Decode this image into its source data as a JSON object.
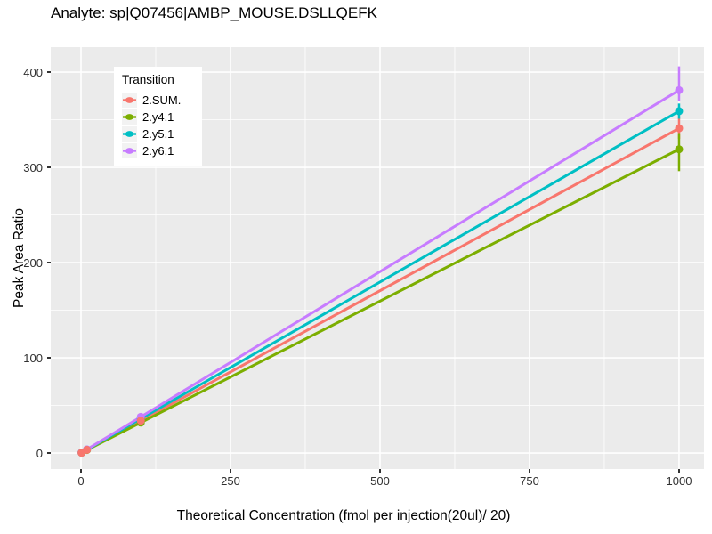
{
  "title": "Analyte: sp|Q07456|AMBP_MOUSE.DSLLQEFK",
  "axes": {
    "x": {
      "title": "Theoretical Concentration (fmol per injection(20ul)/ 20)"
    },
    "y": {
      "title": "Peak Area Ratio"
    }
  },
  "legend": {
    "title": "Transition",
    "items": [
      {
        "label": "2.SUM.",
        "color": "#F8766D"
      },
      {
        "label": "2.y4.1",
        "color": "#7CAE00"
      },
      {
        "label": "2.y5.1",
        "color": "#00BFC4"
      },
      {
        "label": "2.y6.1",
        "color": "#C77CFF"
      }
    ]
  },
  "chart_data": {
    "type": "line",
    "title": "Analyte: sp|Q07456|AMBP_MOUSE.DSLLQEFK",
    "xlabel": "Theoretical Concentration (fmol per injection(20ul)/ 20)",
    "ylabel": "Peak Area Ratio",
    "x": [
      1,
      10,
      100,
      1000
    ],
    "series": [
      {
        "name": "2.SUM.",
        "color": "#F8766D",
        "values": [
          0.3,
          3.4,
          34,
          341
        ],
        "error_bar": {
          "x": 1000,
          "low": 330,
          "high": 352
        }
      },
      {
        "name": "2.y4.1",
        "color": "#7CAE00",
        "values": [
          0.3,
          3.2,
          32,
          319
        ],
        "error_bar": {
          "x": 1000,
          "low": 296,
          "high": 336
        }
      },
      {
        "name": "2.y5.1",
        "color": "#00BFC4",
        "values": [
          0.4,
          3.6,
          36,
          359
        ],
        "error_bar": {
          "x": 1000,
          "low": 351,
          "high": 367
        }
      },
      {
        "name": "2.y6.1",
        "color": "#C77CFF",
        "values": [
          0.4,
          3.8,
          38,
          381
        ],
        "error_bar": {
          "x": 1000,
          "low": 370,
          "high": 406
        }
      }
    ],
    "point_draw_order": [
      "2.y4.1",
      "2.y5.1",
      "2.y6.1",
      "2.SUM."
    ],
    "x_ticks": [
      0,
      250,
      500,
      750,
      1000
    ],
    "y_ticks": [
      0,
      100,
      200,
      300,
      400
    ],
    "x_minor": [
      125,
      375,
      625,
      875
    ],
    "y_minor": [
      50,
      150,
      250,
      350
    ],
    "xlim": [
      -50.6,
      1041.7
    ],
    "ylim": [
      -16.8,
      426.2
    ],
    "grid": true,
    "panel_background": "#EBEBEB",
    "gridline_color": "#FFFFFF",
    "legend_position": "inside-top-left"
  }
}
